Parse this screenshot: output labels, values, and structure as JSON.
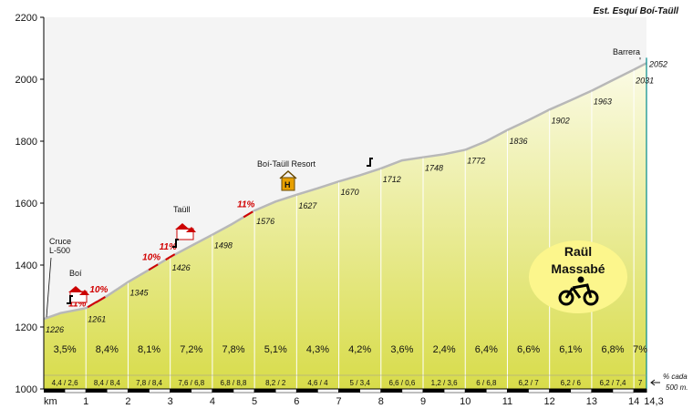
{
  "chart_data": {
    "type": "area",
    "title": "Est. Esquí Boí-Taüll",
    "xlabel": "km",
    "ylim": [
      1000,
      2200
    ],
    "yticks": [
      "2200",
      "2000",
      "1800",
      "1600",
      "1400",
      "1200",
      "1000"
    ],
    "xticks": [
      "1",
      "2",
      "3",
      "4",
      "5",
      "6",
      "7",
      "8",
      "9",
      "10",
      "11",
      "12",
      "13",
      "14",
      "14,3"
    ],
    "profile": {
      "x": [
        0,
        0.4,
        1,
        1.5,
        2,
        2.5,
        3,
        3.5,
        4,
        4.5,
        5,
        5.5,
        6,
        6.5,
        7,
        7.5,
        8,
        8.5,
        9,
        9.5,
        10,
        10.5,
        11,
        11.5,
        12,
        12.5,
        13,
        13.5,
        14,
        14.3
      ],
      "y": [
        1226,
        1245,
        1261,
        1300,
        1345,
        1385,
        1426,
        1462,
        1498,
        1535,
        1576,
        1605,
        1627,
        1648,
        1670,
        1690,
        1712,
        1738,
        1748,
        1758,
        1772,
        1800,
        1836,
        1868,
        1902,
        1932,
        1963,
        1997,
        2031,
        2052
      ]
    },
    "altitude_labels": [
      {
        "x": 0,
        "label": "1226"
      },
      {
        "x": 1,
        "label": "1261"
      },
      {
        "x": 2,
        "label": "1345"
      },
      {
        "x": 3,
        "label": "1426"
      },
      {
        "x": 4,
        "label": "1498"
      },
      {
        "x": 5,
        "label": "1576"
      },
      {
        "x": 6,
        "label": "1627"
      },
      {
        "x": 7,
        "label": "1670"
      },
      {
        "x": 8,
        "label": "1712"
      },
      {
        "x": 9,
        "label": "1748"
      },
      {
        "x": 10,
        "label": "1772"
      },
      {
        "x": 11,
        "label": "1836"
      },
      {
        "x": 12,
        "label": "1902"
      },
      {
        "x": 13,
        "label": "1963"
      },
      {
        "x": 14,
        "label": "2031"
      },
      {
        "x": 14.3,
        "label": "2052"
      }
    ],
    "segments": [
      {
        "label": "3,5%",
        "sub": "4,4 / 2,6"
      },
      {
        "label": "8,4%",
        "sub": "8,4 / 8,4"
      },
      {
        "label": "8,1%",
        "sub": "7,8 / 8,4"
      },
      {
        "label": "7,2%",
        "sub": "7,6 / 6,8"
      },
      {
        "label": "7,8%",
        "sub": "6,8 / 8,8"
      },
      {
        "label": "5,1%",
        "sub": "8,2 / 2"
      },
      {
        "label": "4,3%",
        "sub": "4,6 / 4"
      },
      {
        "label": "4,2%",
        "sub": "5 / 3,4"
      },
      {
        "label": "3,6%",
        "sub": "6,6 / 0,6"
      },
      {
        "label": "2,4%",
        "sub": "1,2 / 3,6"
      },
      {
        "label": "6,4%",
        "sub": "6 / 6,8"
      },
      {
        "label": "6,6%",
        "sub": "6,2 / 7"
      },
      {
        "label": "6,1%",
        "sub": "6,2 / 6"
      },
      {
        "label": "6,8%",
        "sub": "6,2 / 7,4"
      },
      {
        "label": "7%",
        "sub": "7"
      }
    ],
    "ramps": [
      {
        "x": 1.35,
        "label": "10%"
      },
      {
        "x": 1.15,
        "label": "11%"
      },
      {
        "x": 2.6,
        "label": "10%"
      },
      {
        "x": 3.0,
        "label": "11%"
      },
      {
        "x": 4.85,
        "label": "11%"
      }
    ],
    "places": [
      {
        "x": 0.05,
        "label": "Cruce"
      },
      {
        "x": 0.05,
        "label": "L-500"
      },
      {
        "x": 0.75,
        "label": "Boí"
      },
      {
        "x": 3.4,
        "label": "Taüll"
      },
      {
        "x": 5.8,
        "label": "Boí-Taüll Resort"
      },
      {
        "x": 14.0,
        "label": "Barrera"
      }
    ],
    "note": [
      "% cada",
      "500 m."
    ],
    "badge": [
      "Raül",
      "Massabé"
    ],
    "colors": {
      "fill_top": "#fbfbe6",
      "fill_bottom": "#d8dc4a",
      "outline": "#b8b8b8",
      "grade_text": "#d10000",
      "badge_fill": "#fcf68c",
      "end_line": "#008a8a"
    }
  }
}
